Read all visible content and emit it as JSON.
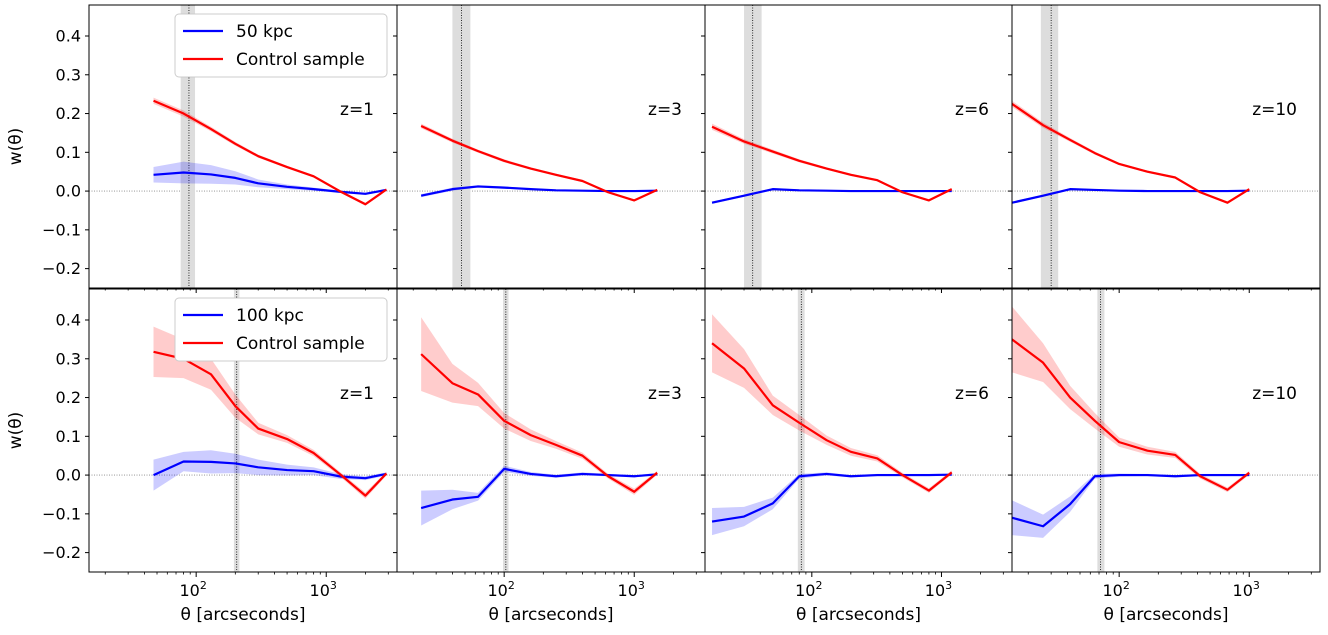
{
  "chart_data": {
    "type": "line",
    "layout": "2 rows x 4 columns, shared axes",
    "xlabel": "θ [arcseconds]",
    "ylabel": "w(θ)",
    "xscale": "log",
    "xlim": [
      15,
      3500
    ],
    "ylim": [
      -0.25,
      0.48
    ],
    "xticks": [
      {
        "value": 100,
        "base": "10",
        "exp": "2"
      },
      {
        "value": 1000,
        "base": "10",
        "exp": "3"
      }
    ],
    "yticks": [
      -0.2,
      -0.1,
      0.0,
      0.1,
      0.2,
      0.3,
      0.4
    ],
    "ytick_labels": [
      "−0.2",
      "−0.1",
      "0.0",
      "0.1",
      "0.2",
      "0.3",
      "0.4"
    ],
    "zero_line": true,
    "colors": {
      "sample": "#0000ff",
      "control": "#ff0000",
      "vband": "#dddddd",
      "zero": "#888888"
    },
    "legend_placement": "upper-left of first panel in each row",
    "rows": [
      {
        "legend": [
          "50 kpc",
          "Control sample"
        ],
        "panels": [
          {
            "label": "z=1",
            "vline": 88,
            "vband": [
              76,
              98
            ],
            "series": [
              {
                "name": "50 kpc",
                "x": [
                  47,
                  80,
                  130,
                  200,
                  300,
                  500,
                  800,
                  1300,
                  2000,
                  2900
                ],
                "y": [
                  0.042,
                  0.048,
                  0.043,
                  0.034,
                  0.02,
                  0.011,
                  0.005,
                  -0.002,
                  -0.007,
                  0.003
                ],
                "band": [
                  0.02,
                  0.028,
                  0.024,
                  0.017,
                  0.01,
                  0.006,
                  0.004,
                  0.003,
                  0.003,
                  0.003
                ]
              },
              {
                "name": "Control sample",
                "x": [
                  47,
                  80,
                  130,
                  200,
                  300,
                  500,
                  800,
                  1300,
                  2000,
                  2900
                ],
                "y": [
                  0.233,
                  0.2,
                  0.16,
                  0.122,
                  0.09,
                  0.062,
                  0.038,
                  -0.002,
                  -0.034,
                  0.004
                ],
                "band": [
                  0.008,
                  0.008,
                  0.006,
                  0.005,
                  0.004,
                  0.003,
                  0.003,
                  0.003,
                  0.004,
                  0.003
                ]
              }
            ]
          },
          {
            "label": "z=3",
            "vline": 47,
            "vband": [
              40,
              55
            ],
            "series": [
              {
                "name": "50 kpc",
                "x": [
                  23,
                  40,
                  63,
                  100,
                  160,
                  250,
                  400,
                  630,
                  1000,
                  1500
                ],
                "y": [
                  -0.012,
                  0.005,
                  0.012,
                  0.009,
                  0.005,
                  0.002,
                  0.001,
                  0.0,
                  0.0,
                  0.001
                ],
                "band": [
                  0.004,
                  0.004,
                  0.003,
                  0.003,
                  0.002,
                  0.002,
                  0.002,
                  0.002,
                  0.002,
                  0.002
                ]
              },
              {
                "name": "Control sample",
                "x": [
                  23,
                  40,
                  63,
                  100,
                  160,
                  250,
                  400,
                  630,
                  1000,
                  1500
                ],
                "y": [
                  0.168,
                  0.13,
                  0.103,
                  0.078,
                  0.058,
                  0.042,
                  0.026,
                  -0.003,
                  -0.024,
                  0.003
                ],
                "band": [
                  0.006,
                  0.005,
                  0.004,
                  0.004,
                  0.003,
                  0.003,
                  0.003,
                  0.003,
                  0.003,
                  0.003
                ]
              }
            ]
          },
          {
            "label": "z=6",
            "vline": 35,
            "vband": [
              30,
              41
            ],
            "series": [
              {
                "name": "50 kpc",
                "x": [
                  17,
                  30,
                  50,
                  80,
                  130,
                  200,
                  320,
                  500,
                  800,
                  1200
                ],
                "y": [
                  -0.03,
                  -0.012,
                  0.005,
                  0.002,
                  0.001,
                  0.0,
                  0.0,
                  0.0,
                  0.0,
                  0.0
                ],
                "band": [
                  0.003,
                  0.003,
                  0.003,
                  0.002,
                  0.002,
                  0.002,
                  0.002,
                  0.002,
                  0.002,
                  0.002
                ]
              },
              {
                "name": "Control sample",
                "x": [
                  17,
                  30,
                  50,
                  80,
                  130,
                  200,
                  320,
                  500,
                  800,
                  1200
                ],
                "y": [
                  0.166,
                  0.128,
                  0.102,
                  0.078,
                  0.058,
                  0.042,
                  0.028,
                  -0.003,
                  -0.024,
                  0.005
                ],
                "band": [
                  0.008,
                  0.006,
                  0.005,
                  0.004,
                  0.003,
                  0.003,
                  0.003,
                  0.003,
                  0.003,
                  0.003
                ]
              }
            ]
          },
          {
            "label": "z=10",
            "vline": 30,
            "vband": [
              25,
              34
            ],
            "series": [
              {
                "name": "50 kpc",
                "x": [
                  15,
                  26,
                  42,
                  65,
                  100,
                  165,
                  270,
                  420,
                  680,
                  1000
                ],
                "y": [
                  -0.03,
                  -0.012,
                  0.005,
                  0.003,
                  0.001,
                  0.0,
                  0.0,
                  0.0,
                  0.0,
                  0.001
                ],
                "band": [
                  0.003,
                  0.003,
                  0.003,
                  0.002,
                  0.002,
                  0.002,
                  0.002,
                  0.002,
                  0.002,
                  0.002
                ]
              },
              {
                "name": "Control sample",
                "x": [
                  15,
                  26,
                  42,
                  65,
                  100,
                  165,
                  270,
                  420,
                  680,
                  1000
                ],
                "y": [
                  0.225,
                  0.17,
                  0.132,
                  0.098,
                  0.07,
                  0.05,
                  0.035,
                  -0.003,
                  -0.03,
                  0.005
                ],
                "band": [
                  0.008,
                  0.007,
                  0.005,
                  0.004,
                  0.003,
                  0.003,
                  0.003,
                  0.003,
                  0.003,
                  0.003
                ]
              }
            ]
          }
        ]
      },
      {
        "legend": [
          "100 kpc",
          "Control sample"
        ],
        "panels": [
          {
            "label": "z=1",
            "vline": 205,
            "vband": [
              195,
              215
            ],
            "series": [
              {
                "name": "100 kpc",
                "x": [
                  47,
                  80,
                  130,
                  200,
                  300,
                  500,
                  800,
                  1300,
                  2000,
                  2900
                ],
                "y": [
                  0.0,
                  0.035,
                  0.034,
                  0.03,
                  0.02,
                  0.013,
                  0.01,
                  -0.004,
                  -0.008,
                  0.003
                ],
                "band": [
                  0.04,
                  0.025,
                  0.03,
                  0.025,
                  0.02,
                  0.014,
                  0.01,
                  0.006,
                  0.005,
                  0.004
                ]
              },
              {
                "name": "Control sample",
                "x": [
                  47,
                  80,
                  130,
                  200,
                  300,
                  500,
                  800,
                  1300,
                  2000,
                  2900
                ],
                "y": [
                  0.318,
                  0.3,
                  0.26,
                  0.178,
                  0.12,
                  0.093,
                  0.057,
                  0.0,
                  -0.053,
                  0.004
                ],
                "band": [
                  0.065,
                  0.05,
                  0.04,
                  0.03,
                  0.015,
                  0.01,
                  0.008,
                  0.006,
                  0.008,
                  0.005
                ]
              }
            ]
          },
          {
            "label": "z=3",
            "vline": 103,
            "vband": [
              98,
              108
            ],
            "series": [
              {
                "name": "100 kpc",
                "x": [
                  23,
                  40,
                  63,
                  100,
                  160,
                  250,
                  400,
                  630,
                  1000,
                  1500
                ],
                "y": [
                  -0.085,
                  -0.063,
                  -0.056,
                  0.016,
                  0.003,
                  -0.003,
                  0.003,
                  0.0,
                  -0.003,
                  0.002
                ],
                "band": [
                  0.045,
                  0.025,
                  0.01,
                  0.008,
                  0.005,
                  0.004,
                  0.004,
                  0.003,
                  0.003,
                  0.003
                ]
              },
              {
                "name": "Control sample",
                "x": [
                  23,
                  40,
                  63,
                  100,
                  160,
                  250,
                  400,
                  630,
                  1000,
                  1500
                ],
                "y": [
                  0.312,
                  0.237,
                  0.208,
                  0.14,
                  0.103,
                  0.078,
                  0.05,
                  -0.003,
                  -0.043,
                  0.006
                ],
                "band": [
                  0.095,
                  0.05,
                  0.03,
                  0.02,
                  0.015,
                  0.01,
                  0.008,
                  0.006,
                  0.008,
                  0.005
                ]
              }
            ]
          },
          {
            "label": "z=6",
            "vline": 83,
            "vband": [
              78,
              88
            ],
            "series": [
              {
                "name": "100 kpc",
                "x": [
                  17,
                  30,
                  50,
                  80,
                  130,
                  200,
                  320,
                  500,
                  800,
                  1200
                ],
                "y": [
                  -0.12,
                  -0.107,
                  -0.073,
                  -0.003,
                  0.003,
                  -0.003,
                  0.0,
                  0.0,
                  0.0,
                  0.001
                ],
                "band": [
                  0.035,
                  0.025,
                  0.015,
                  0.006,
                  0.004,
                  0.003,
                  0.003,
                  0.003,
                  0.003,
                  0.003
                ]
              },
              {
                "name": "Control sample",
                "x": [
                  17,
                  30,
                  50,
                  80,
                  130,
                  200,
                  320,
                  500,
                  800,
                  1200
                ],
                "y": [
                  0.34,
                  0.275,
                  0.18,
                  0.135,
                  0.09,
                  0.06,
                  0.043,
                  0.0,
                  -0.04,
                  0.007
                ],
                "band": [
                  0.075,
                  0.05,
                  0.025,
                  0.02,
                  0.012,
                  0.01,
                  0.008,
                  0.006,
                  0.006,
                  0.005
                ]
              }
            ]
          },
          {
            "label": "z=10",
            "vline": 72,
            "vband": [
              68,
              77
            ],
            "series": [
              {
                "name": "100 kpc",
                "x": [
                  15,
                  26,
                  42,
                  65,
                  100,
                  165,
                  270,
                  420,
                  680,
                  1000
                ],
                "y": [
                  -0.11,
                  -0.132,
                  -0.075,
                  -0.003,
                  0.0,
                  0.0,
                  -0.003,
                  0.0,
                  0.0,
                  0.0
                ],
                "band": [
                  0.045,
                  0.03,
                  0.02,
                  0.006,
                  0.004,
                  0.003,
                  0.003,
                  0.003,
                  0.003,
                  0.003
                ]
              },
              {
                "name": "Control sample",
                "x": [
                  15,
                  26,
                  42,
                  65,
                  100,
                  165,
                  270,
                  420,
                  680,
                  1000
                ],
                "y": [
                  0.35,
                  0.29,
                  0.2,
                  0.14,
                  0.085,
                  0.063,
                  0.052,
                  -0.003,
                  -0.038,
                  0.006
                ],
                "band": [
                  0.085,
                  0.05,
                  0.03,
                  0.02,
                  0.012,
                  0.01,
                  0.008,
                  0.006,
                  0.006,
                  0.005
                ]
              }
            ]
          }
        ]
      }
    ]
  }
}
